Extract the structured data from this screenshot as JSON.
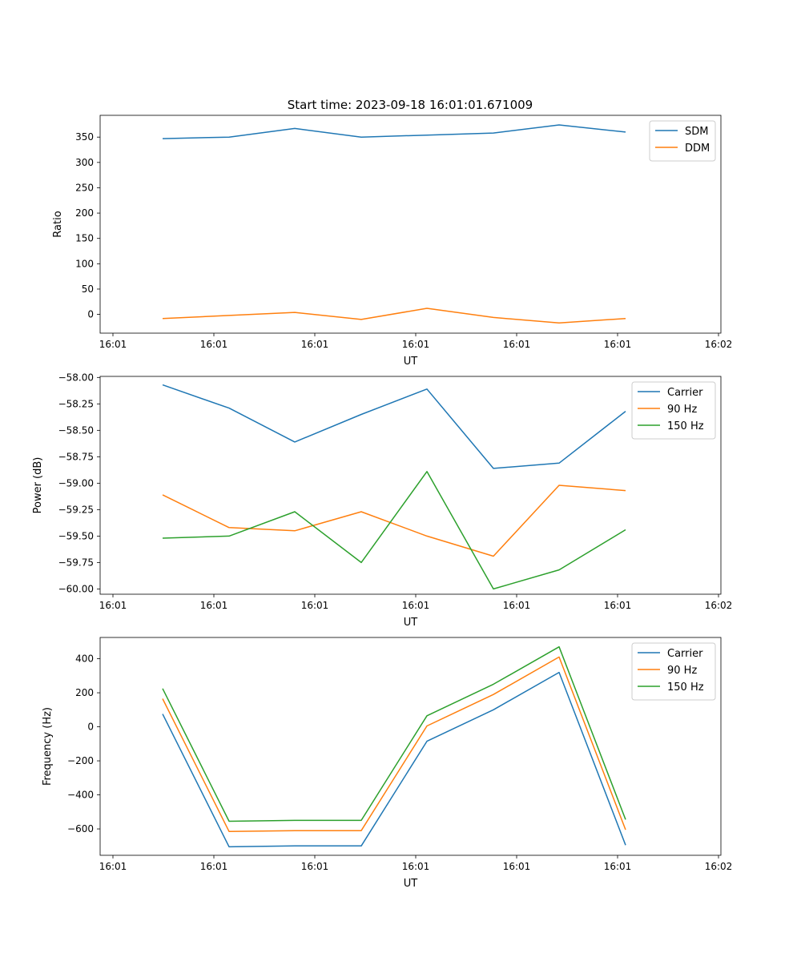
{
  "figure": {
    "title": "Start time: 2023-09-18 16:01:01.671009"
  },
  "colors": {
    "blue": "#1f77b4",
    "orange": "#ff7f0e",
    "green": "#2ca02c"
  },
  "chart_data": [
    {
      "type": "line",
      "title": "Start time: 2023-09-18 16:01:01.671009",
      "xlabel": "UT",
      "ylabel": "Ratio",
      "x_tick_labels": [
        "16:01",
        "16:01",
        "16:01",
        "16:01",
        "16:01",
        "16:01",
        "16:01"
      ],
      "x_tick_last": "16:02",
      "ylim": [
        -37,
        393
      ],
      "y_ticks": [
        0,
        50,
        100,
        150,
        200,
        250,
        300,
        350
      ],
      "legend": "top-right",
      "series": [
        {
          "name": "SDM",
          "color": "#1f77b4",
          "values": [
            347,
            350,
            367,
            350,
            354,
            358,
            374,
            360
          ]
        },
        {
          "name": "DDM",
          "color": "#ff7f0e",
          "values": [
            -8,
            -2,
            4,
            -10,
            12,
            -6,
            -17,
            -8
          ]
        }
      ]
    },
    {
      "type": "line",
      "title": "",
      "xlabel": "UT",
      "ylabel": "Power (dB)",
      "x_tick_labels": [
        "16:01",
        "16:01",
        "16:01",
        "16:01",
        "16:01",
        "16:01",
        "16:01"
      ],
      "x_tick_last": "16:02",
      "ylim": [
        -60.05,
        -57.99
      ],
      "y_ticks": [
        -60.0,
        -59.75,
        -59.5,
        -59.25,
        -59.0,
        -58.75,
        -58.5,
        -58.25,
        -58.0
      ],
      "y_tick_labels": [
        "−60.00",
        "−59.75",
        "−59.50",
        "−59.25",
        "−59.00",
        "−58.75",
        "−58.50",
        "−58.25",
        "−58.00"
      ],
      "legend": "top-right",
      "series": [
        {
          "name": "Carrier",
          "color": "#1f77b4",
          "values": [
            -58.07,
            -58.29,
            -58.61,
            -58.35,
            -58.11,
            -58.86,
            -58.81,
            -58.32
          ]
        },
        {
          "name": "90 Hz",
          "color": "#ff7f0e",
          "values": [
            -59.11,
            -59.42,
            -59.45,
            -59.27,
            -59.5,
            -59.69,
            -59.02,
            -59.07
          ]
        },
        {
          "name": "150 Hz",
          "color": "#2ca02c",
          "values": [
            -59.52,
            -59.5,
            -59.27,
            -59.75,
            -58.89,
            -60.0,
            -59.82,
            -59.44
          ]
        }
      ]
    },
    {
      "type": "line",
      "title": "",
      "xlabel": "UT",
      "ylabel": "Frequency (Hz)",
      "x_tick_labels": [
        "16:01",
        "16:01",
        "16:01",
        "16:01",
        "16:01",
        "16:01",
        "16:01"
      ],
      "x_tick_last": "16:02",
      "ylim": [
        -755,
        525
      ],
      "y_ticks": [
        -600,
        -400,
        -200,
        0,
        200,
        400
      ],
      "y_tick_labels": [
        "−600",
        "−400",
        "−200",
        "0",
        "200",
        "400"
      ],
      "legend": "top-right",
      "series": [
        {
          "name": "Carrier",
          "color": "#1f77b4",
          "values": [
            75,
            -705,
            -700,
            -700,
            -85,
            100,
            320,
            -695
          ]
        },
        {
          "name": "90 Hz",
          "color": "#ff7f0e",
          "values": [
            165,
            -615,
            -610,
            -610,
            5,
            190,
            410,
            -605
          ]
        },
        {
          "name": "150 Hz",
          "color": "#2ca02c",
          "values": [
            225,
            -555,
            -550,
            -550,
            65,
            250,
            470,
            -545
          ]
        }
      ]
    }
  ]
}
